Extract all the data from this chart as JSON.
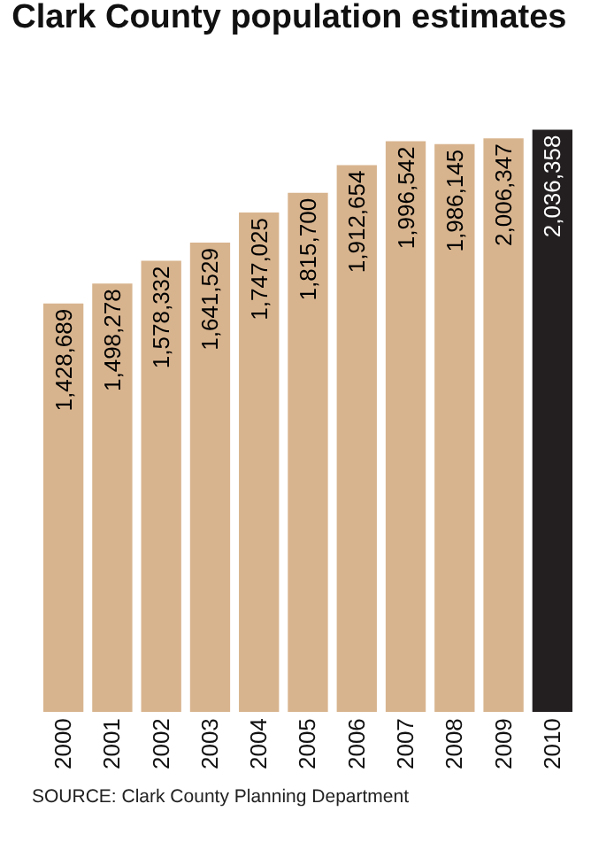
{
  "chart_data": {
    "type": "bar",
    "title": "Clark County population estimates",
    "categories": [
      "2000",
      "2001",
      "2002",
      "2003",
      "2004",
      "2005",
      "2006",
      "2007",
      "2008",
      "2009",
      "2010"
    ],
    "values": [
      1428689,
      1498278,
      1578332,
      1641529,
      1747025,
      1815700,
      1912654,
      1996542,
      1986145,
      2006347,
      2036358
    ],
    "colors": [
      "#d8b48e",
      "#d8b48e",
      "#d8b48e",
      "#d8b48e",
      "#d8b48e",
      "#d8b48e",
      "#d8b48e",
      "#d8b48e",
      "#d8b48e",
      "#d8b48e",
      "#231f20"
    ],
    "value_labels": [
      "1,428,689",
      "1,498,278",
      "1,578,332",
      "1,641,529",
      "1,747,025",
      "1,815,700",
      "1,912,654",
      "1,996,542",
      "1,986,145",
      "2,006,347",
      "2,036,358"
    ],
    "annotations": [
      "SOURCE: Clark County Planning Department"
    ]
  }
}
